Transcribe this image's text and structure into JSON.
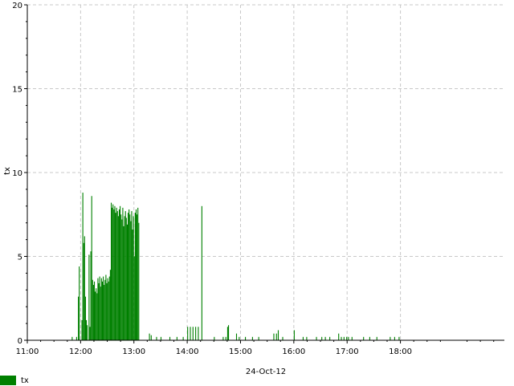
{
  "chart_data": {
    "type": "bar",
    "title": "",
    "xlabel": "24-Oct-12",
    "ylabel": "tx",
    "ylim": [
      0,
      20
    ],
    "xlim": [
      "11:00",
      "19:57"
    ],
    "yticks": [
      "0",
      "5",
      "10",
      "15",
      "20"
    ],
    "xticks": [
      "11:00",
      "12:00",
      "13:00",
      "14:00",
      "15:00",
      "16:00",
      "17:00",
      "18:00"
    ],
    "grid": true,
    "legend": "bottom-left",
    "series": [
      {
        "name": "tx",
        "color": "#008000",
        "points": [
          [
            "11:50",
            0.2
          ],
          [
            "11:55",
            0.2
          ],
          [
            "11:57",
            2.6
          ],
          [
            "11:58",
            4.4
          ],
          [
            "12:01",
            1.2
          ],
          [
            "12:02",
            8.8
          ],
          [
            "12:03",
            5.8
          ],
          [
            "12:04",
            6.2
          ],
          [
            "12:05",
            2.6
          ],
          [
            "12:06",
            1.2
          ],
          [
            "12:07",
            0.9
          ],
          [
            "12:09",
            5.1
          ],
          [
            "12:10",
            0.8
          ],
          [
            "12:11",
            5.3
          ],
          [
            "12:12",
            8.6
          ],
          [
            "12:13",
            3.6
          ],
          [
            "12:14",
            3.3
          ],
          [
            "12:15",
            3.5
          ],
          [
            "12:16",
            2.9
          ],
          [
            "12:17",
            3.1
          ],
          [
            "12:18",
            2.8
          ],
          [
            "12:19",
            3.7
          ],
          [
            "12:20",
            3.4
          ],
          [
            "12:21",
            3.8
          ],
          [
            "12:22",
            3.2
          ],
          [
            "12:23",
            3.7
          ],
          [
            "12:24",
            3.5
          ],
          [
            "12:25",
            3.8
          ],
          [
            "12:26",
            3.3
          ],
          [
            "12:27",
            3.6
          ],
          [
            "12:28",
            3.9
          ],
          [
            "12:29",
            3.4
          ],
          [
            "12:30",
            3.7
          ],
          [
            "12:31",
            3.5
          ],
          [
            "12:32",
            3.8
          ],
          [
            "12:33",
            4.2
          ],
          [
            "12:34",
            8.2
          ],
          [
            "12:35",
            7.9
          ],
          [
            "12:36",
            8.1
          ],
          [
            "12:37",
            7.8
          ],
          [
            "12:38",
            8.0
          ],
          [
            "12:39",
            7.6
          ],
          [
            "12:40",
            7.9
          ],
          [
            "12:41",
            7.7
          ],
          [
            "12:42",
            7.4
          ],
          [
            "12:43",
            7.8
          ],
          [
            "12:44",
            8.0
          ],
          [
            "12:45",
            7.5
          ],
          [
            "12:46",
            7.2
          ],
          [
            "12:47",
            7.9
          ],
          [
            "12:48",
            6.8
          ],
          [
            "12:49",
            7.4
          ],
          [
            "12:50",
            7.7
          ],
          [
            "12:51",
            7.3
          ],
          [
            "12:52",
            6.9
          ],
          [
            "12:53",
            7.6
          ],
          [
            "12:54",
            7.8
          ],
          [
            "12:55",
            7.5
          ],
          [
            "12:56",
            7.1
          ],
          [
            "12:57",
            7.7
          ],
          [
            "12:58",
            6.6
          ],
          [
            "12:59",
            7.4
          ],
          [
            "13:00",
            5.0
          ],
          [
            "13:01",
            7.6
          ],
          [
            "13:02",
            7.8
          ],
          [
            "13:03",
            7.5
          ],
          [
            "13:04",
            7.9
          ],
          [
            "13:05",
            7.0
          ],
          [
            "13:17",
            0.4
          ],
          [
            "13:19",
            0.3
          ],
          [
            "13:25",
            0.2
          ],
          [
            "13:30",
            0.2
          ],
          [
            "13:40",
            0.2
          ],
          [
            "13:48",
            0.2
          ],
          [
            "13:55",
            0.2
          ],
          [
            "14:00",
            0.8
          ],
          [
            "14:03",
            0.8
          ],
          [
            "14:06",
            0.8
          ],
          [
            "14:09",
            0.8
          ],
          [
            "14:12",
            0.8
          ],
          [
            "14:16",
            8.0
          ],
          [
            "14:30",
            0.2
          ],
          [
            "14:40",
            0.2
          ],
          [
            "14:43",
            0.2
          ],
          [
            "14:45",
            0.8
          ],
          [
            "14:46",
            0.9
          ],
          [
            "14:55",
            0.4
          ],
          [
            "14:58",
            0.2
          ],
          [
            "15:05",
            0.2
          ],
          [
            "15:13",
            0.2
          ],
          [
            "15:20",
            0.2
          ],
          [
            "15:37",
            0.4
          ],
          [
            "15:40",
            0.4
          ],
          [
            "15:42",
            0.6
          ],
          [
            "15:47",
            0.2
          ],
          [
            "16:00",
            0.6
          ],
          [
            "16:10",
            0.2
          ],
          [
            "16:14",
            0.2
          ],
          [
            "16:25",
            0.2
          ],
          [
            "16:31",
            0.2
          ],
          [
            "16:35",
            0.2
          ],
          [
            "16:40",
            0.2
          ],
          [
            "16:50",
            0.4
          ],
          [
            "16:53",
            0.2
          ],
          [
            "16:56",
            0.2
          ],
          [
            "16:59",
            0.2
          ],
          [
            "17:01",
            0.2
          ],
          [
            "17:05",
            0.2
          ],
          [
            "17:18",
            0.2
          ],
          [
            "17:25",
            0.2
          ],
          [
            "17:33",
            0.2
          ],
          [
            "17:48",
            0.2
          ],
          [
            "17:53",
            0.2
          ],
          [
            "17:58",
            0.2
          ]
        ]
      }
    ]
  },
  "legend": {
    "label": "tx",
    "color": "#008000"
  }
}
